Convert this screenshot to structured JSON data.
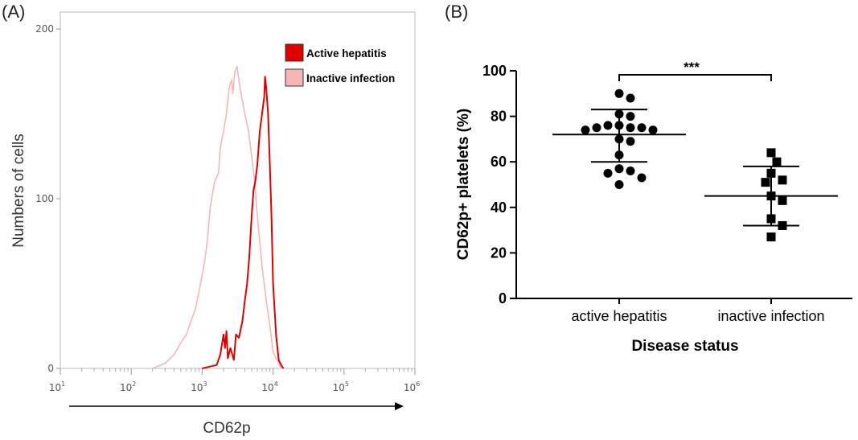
{
  "figure": {
    "panel_a_label": "(A)",
    "panel_b_label": "(B)"
  },
  "chart_data": [
    {
      "type": "line",
      "panel": "(A)",
      "xlabel": "CD62p",
      "ylabel": "Numbers of cells",
      "x_scale": "log",
      "xlim": [
        10,
        1000000
      ],
      "ylim": [
        0,
        210
      ],
      "x_tick_exponents": [
        "1",
        "2",
        "3",
        "4",
        "5",
        "6"
      ],
      "y_ticks": [
        "0",
        "100",
        "200"
      ],
      "legend_position": "top-right",
      "series": [
        {
          "name": "Active hepatitis",
          "color": "#e00000",
          "x": [
            1000,
            1600,
            1800,
            2000,
            2100,
            2200,
            2300,
            2500,
            2800,
            3000,
            3300,
            3700,
            4000,
            4300,
            4600,
            5000,
            5300,
            5600,
            6000,
            6500,
            7000,
            7500,
            7700,
            8000,
            8500,
            9000,
            9500,
            10000,
            11000,
            12000,
            13000,
            14000
          ],
          "y": [
            0,
            2,
            8,
            20,
            12,
            22,
            6,
            12,
            5,
            20,
            18,
            28,
            40,
            50,
            65,
            90,
            105,
            110,
            120,
            140,
            150,
            160,
            172,
            165,
            150,
            120,
            90,
            50,
            20,
            5,
            2,
            0
          ]
        },
        {
          "name": "Inactive infection",
          "color": "#f6b6b6",
          "x": [
            200,
            300,
            400,
            500,
            600,
            700,
            800,
            900,
            1000,
            1100,
            1200,
            1300,
            1500,
            1700,
            1800,
            2000,
            2200,
            2400,
            2600,
            2700,
            2900,
            3100,
            3300,
            3600,
            4000,
            4500,
            5000,
            5500,
            6000,
            7000,
            8000,
            9000,
            10000,
            11000,
            12000,
            13000
          ],
          "y": [
            0,
            3,
            8,
            15,
            20,
            28,
            35,
            45,
            55,
            65,
            78,
            95,
            110,
            115,
            130,
            140,
            150,
            165,
            170,
            162,
            175,
            178,
            170,
            160,
            150,
            140,
            125,
            110,
            90,
            60,
            40,
            25,
            10,
            6,
            3,
            0
          ]
        }
      ]
    },
    {
      "type": "scatter",
      "panel": "(B)",
      "xlabel": "Disease status",
      "ylabel": "CD62p+ platelets (%)",
      "categories": [
        "active hepatitis",
        "inactive infection"
      ],
      "ylim": [
        0,
        100
      ],
      "y_ticks": [
        "0",
        "20",
        "40",
        "60",
        "80",
        "100"
      ],
      "significance": "***",
      "series": [
        {
          "category": "active hepatitis",
          "marker": "circle",
          "mean": 72,
          "sd_upper": 83,
          "sd_lower": 60,
          "values": [
            90,
            88,
            81,
            80,
            76,
            76,
            75,
            75,
            75,
            74,
            74,
            70,
            69,
            63,
            57,
            56,
            55,
            53,
            50
          ]
        },
        {
          "category": "inactive infection",
          "marker": "square",
          "mean": 45,
          "sd_upper": 58,
          "sd_lower": 32,
          "values": [
            64,
            60,
            55,
            52,
            51,
            45,
            43,
            35,
            32,
            27
          ]
        }
      ]
    }
  ]
}
